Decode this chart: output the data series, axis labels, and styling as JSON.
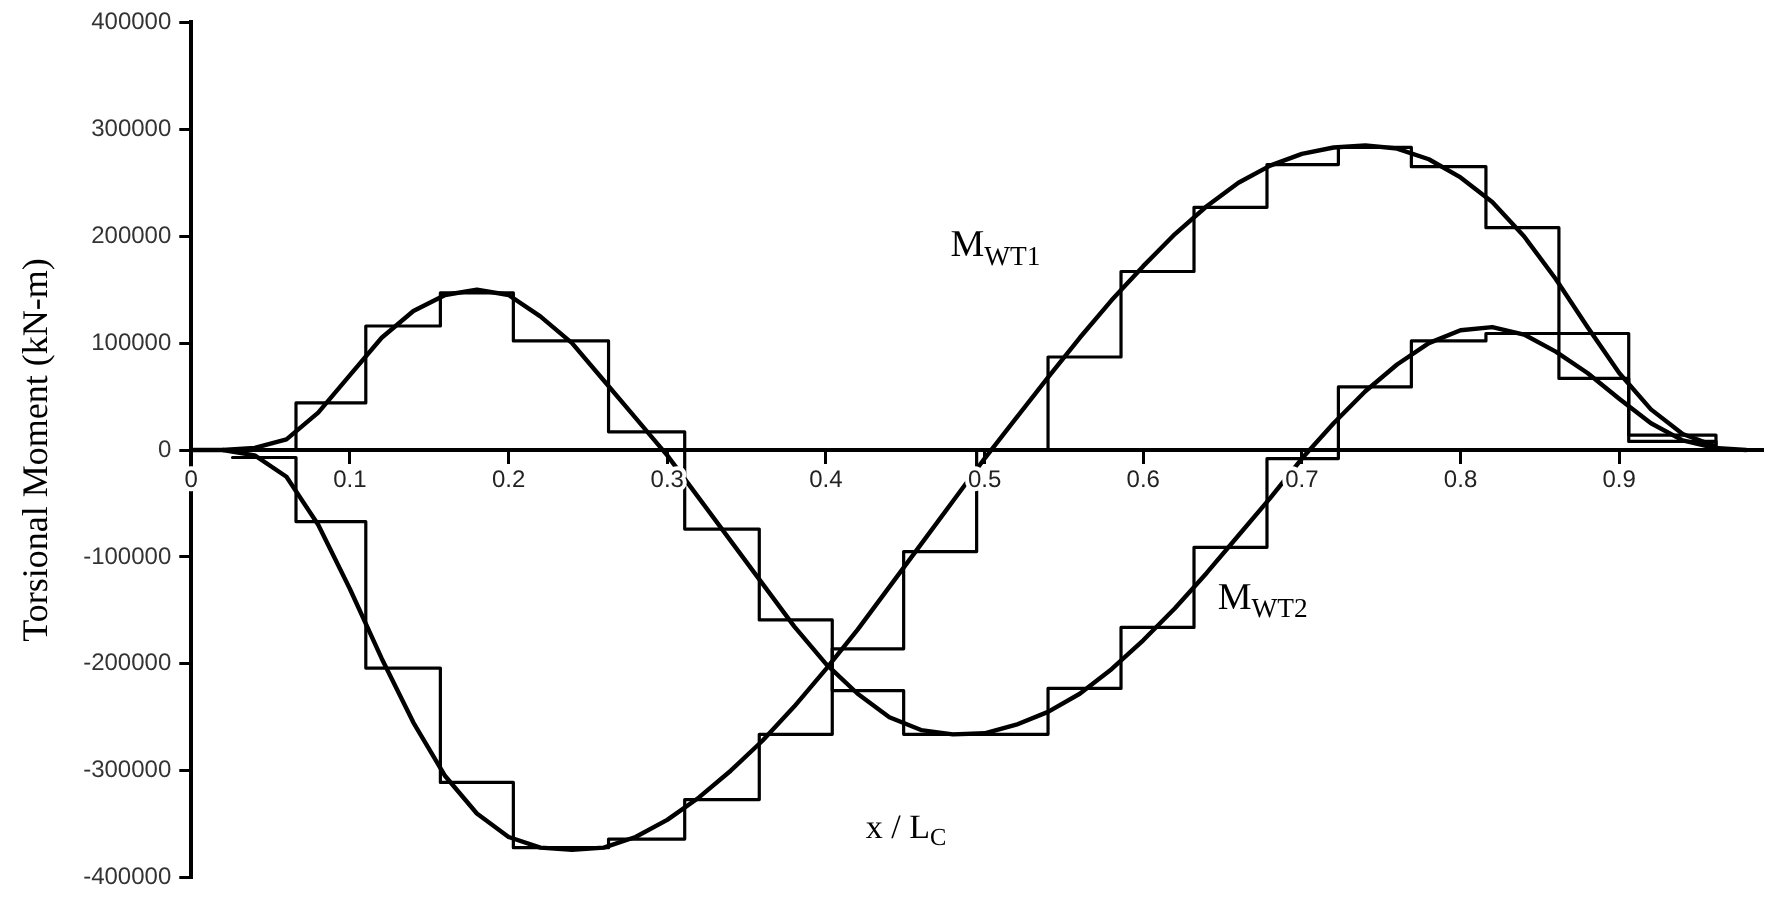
{
  "chart_data": {
    "type": "line",
    "xlabel": "x / L$_{C}$",
    "ylabel": "Torsional Moment (kN-m)",
    "xlim": [
      0,
      0.99
    ],
    "ylim": [
      -400000,
      400000
    ],
    "xticks": [
      0,
      0.1,
      0.2,
      0.3,
      0.4,
      0.5,
      0.6,
      0.7,
      0.8,
      0.9
    ],
    "yticks": [
      -400000,
      -300000,
      -200000,
      -100000,
      0,
      100000,
      200000,
      300000,
      400000
    ],
    "grid": false,
    "legend": false,
    "marker": "none",
    "line_style": "solid",
    "series": [
      {
        "type": "line",
        "name": "M$_{WT1}$",
        "color": "#000000",
        "x": [
          0,
          0.02,
          0.04,
          0.06,
          0.08,
          0.1,
          0.12,
          0.14,
          0.16,
          0.18,
          0.2,
          0.22,
          0.24,
          0.26,
          0.28,
          0.3,
          0.32,
          0.34,
          0.36,
          0.38,
          0.4,
          0.42,
          0.44,
          0.46,
          0.48,
          0.5,
          0.52,
          0.54,
          0.56,
          0.58,
          0.6,
          0.62,
          0.64,
          0.66,
          0.68,
          0.7,
          0.72,
          0.74,
          0.76,
          0.78,
          0.8,
          0.82,
          0.84,
          0.86,
          0.88,
          0.9,
          0.92,
          0.94,
          0.96
        ],
        "values": [
          0,
          0,
          -5000,
          -25000,
          -70000,
          -130000,
          -195000,
          -255000,
          -305000,
          -340000,
          -362000,
          -372000,
          -374000,
          -372000,
          -362000,
          -346000,
          -325000,
          -300000,
          -272000,
          -240000,
          -205000,
          -168000,
          -128000,
          -88000,
          -48000,
          -8000,
          30000,
          68000,
          105000,
          140000,
          172000,
          202000,
          228000,
          250000,
          266000,
          277000,
          283000,
          285000,
          282000,
          272000,
          255000,
          232000,
          200000,
          160000,
          115000,
          72000,
          38000,
          15000,
          4000
        ]
      },
      {
        "type": "step",
        "color": "#000000",
        "x": [
          0.026,
          0.066,
          0.11,
          0.157,
          0.203,
          0.263,
          0.311,
          0.358,
          0.404,
          0.449,
          0.495,
          0.54,
          0.586,
          0.632,
          0.678,
          0.723,
          0.769,
          0.816,
          0.862,
          0.906,
          0.961
        ],
        "values": [
          -7000,
          -67000,
          -204000,
          -311000,
          -372000,
          -364000,
          -327000,
          -266000,
          -186000,
          -95000,
          0,
          87000,
          167000,
          227000,
          267000,
          283000,
          265000,
          208000,
          109000,
          14000,
          0
        ]
      },
      {
        "type": "line",
        "name": "M$_{WT2}$",
        "color": "#000000",
        "x": [
          0.02,
          0.04,
          0.06,
          0.08,
          0.1,
          0.12,
          0.14,
          0.16,
          0.18,
          0.2,
          0.22,
          0.24,
          0.26,
          0.28,
          0.3,
          0.32,
          0.34,
          0.36,
          0.38,
          0.4,
          0.42,
          0.44,
          0.46,
          0.48,
          0.5,
          0.52,
          0.54,
          0.56,
          0.58,
          0.6,
          0.62,
          0.64,
          0.66,
          0.68,
          0.7,
          0.72,
          0.74,
          0.76,
          0.78,
          0.8,
          0.82,
          0.84,
          0.86,
          0.88,
          0.9,
          0.92,
          0.94,
          0.96,
          0.98
        ],
        "values": [
          0,
          2000,
          10000,
          35000,
          70000,
          105000,
          130000,
          145000,
          150000,
          145000,
          125000,
          100000,
          65000,
          30000,
          -5000,
          -45000,
          -85000,
          -125000,
          -165000,
          -200000,
          -228000,
          -250000,
          -262000,
          -266000,
          -265000,
          -257000,
          -245000,
          -228000,
          -205000,
          -178000,
          -148000,
          -115000,
          -80000,
          -45000,
          -8000,
          25000,
          55000,
          80000,
          100000,
          112000,
          115000,
          108000,
          92000,
          72000,
          48000,
          25000,
          9000,
          2000,
          0
        ]
      },
      {
        "type": "step",
        "color": "#000000",
        "x": [
          0.026,
          0.066,
          0.11,
          0.157,
          0.203,
          0.263,
          0.311,
          0.358,
          0.404,
          0.449,
          0.54,
          0.586,
          0.632,
          0.678,
          0.723,
          0.769,
          0.816,
          0.862,
          0.906,
          0.961
        ],
        "values": [
          0,
          44000,
          116000,
          147000,
          102000,
          17000,
          -74000,
          -159000,
          -225000,
          -266000,
          -223000,
          -166000,
          -91000,
          -8000,
          59000,
          102000,
          109000,
          67000,
          8000,
          0
        ]
      }
    ]
  }
}
